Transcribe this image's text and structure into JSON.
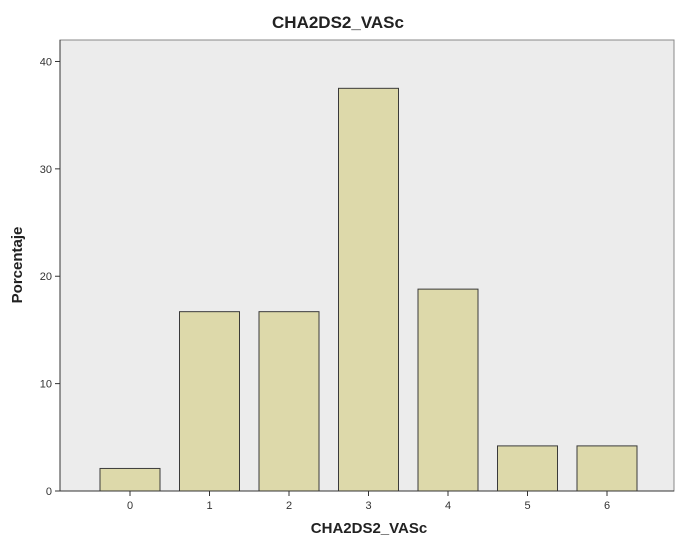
{
  "chart_data": {
    "type": "bar",
    "title": "CHA2DS2_VASc",
    "xlabel": "CHA2DS2_VASc",
    "ylabel": "Porcentaje",
    "categories": [
      "0",
      "1",
      "2",
      "3",
      "4",
      "5",
      "6"
    ],
    "values": [
      2.1,
      16.7,
      16.7,
      37.5,
      18.8,
      4.2,
      4.2
    ],
    "ylim": [
      0,
      42
    ],
    "yticks": [
      "0",
      "10",
      "20",
      "30",
      "40"
    ],
    "grid": false,
    "legend": "none",
    "colors": {
      "bar_fill": "#ddd9aa",
      "bar_stroke": "#3a3a3a",
      "plot_background": "#ececec",
      "page_background": "#ffffff"
    }
  }
}
